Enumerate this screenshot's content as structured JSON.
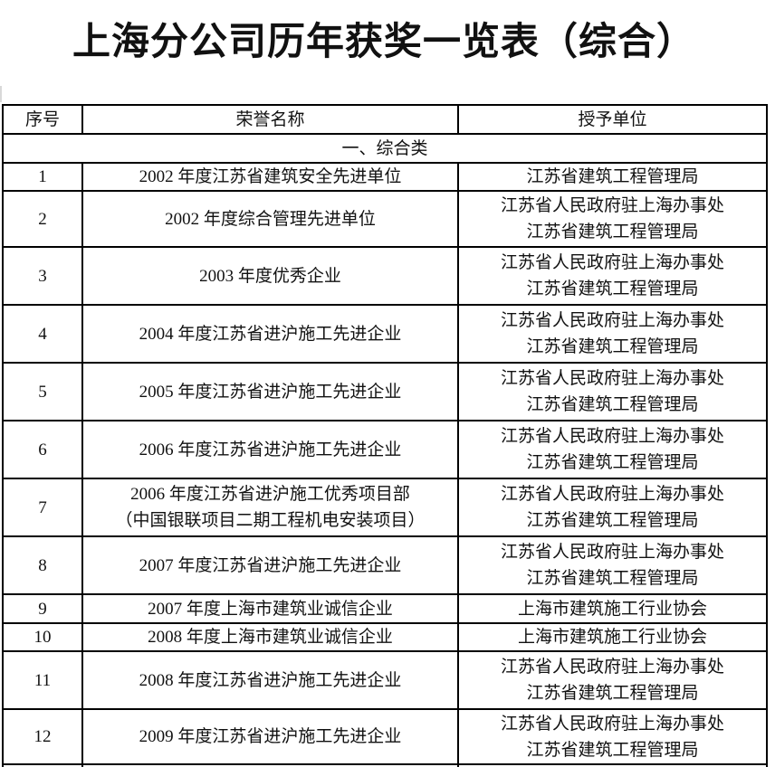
{
  "title": "上海分公司历年获奖一览表（综合）",
  "table": {
    "headers": [
      "序号",
      "荣誉名称",
      "授予单位"
    ],
    "section_header": "一、综合类",
    "rows": [
      {
        "no": "1",
        "honor": [
          "2002 年度江苏省建筑安全先进单位"
        ],
        "unit": [
          "江苏省建筑工程管理局"
        ]
      },
      {
        "no": "2",
        "honor": [
          "2002 年度综合管理先进单位"
        ],
        "unit": [
          "江苏省人民政府驻上海办事处",
          "江苏省建筑工程管理局"
        ]
      },
      {
        "no": "3",
        "honor": [
          "2003 年度优秀企业"
        ],
        "unit": [
          "江苏省人民政府驻上海办事处",
          "江苏省建筑工程管理局"
        ]
      },
      {
        "no": "4",
        "honor": [
          "2004 年度江苏省进沪施工先进企业"
        ],
        "unit": [
          "江苏省人民政府驻上海办事处",
          "江苏省建筑工程管理局"
        ]
      },
      {
        "no": "5",
        "honor": [
          "2005 年度江苏省进沪施工先进企业"
        ],
        "unit": [
          "江苏省人民政府驻上海办事处",
          "江苏省建筑工程管理局"
        ]
      },
      {
        "no": "6",
        "honor": [
          "2006 年度江苏省进沪施工先进企业"
        ],
        "unit": [
          "江苏省人民政府驻上海办事处",
          "江苏省建筑工程管理局"
        ]
      },
      {
        "no": "7",
        "honor": [
          "2006 年度江苏省进沪施工优秀项目部",
          "（中国银联项目二期工程机电安装项目）"
        ],
        "unit": [
          "江苏省人民政府驻上海办事处",
          "江苏省建筑工程管理局"
        ]
      },
      {
        "no": "8",
        "honor": [
          "2007 年度江苏省进沪施工先进企业"
        ],
        "unit": [
          "江苏省人民政府驻上海办事处",
          "江苏省建筑工程管理局"
        ]
      },
      {
        "no": "9",
        "honor": [
          "2007 年度上海市建筑业诚信企业"
        ],
        "unit": [
          "上海市建筑施工行业协会"
        ]
      },
      {
        "no": "10",
        "honor": [
          "2008 年度上海市建筑业诚信企业"
        ],
        "unit": [
          "上海市建筑施工行业协会"
        ]
      },
      {
        "no": "11",
        "honor": [
          "2008 年度江苏省进沪施工先进企业"
        ],
        "unit": [
          "江苏省人民政府驻上海办事处",
          "江苏省建筑工程管理局"
        ]
      },
      {
        "no": "12",
        "honor": [
          "2009 年度江苏省进沪施工先进企业"
        ],
        "unit": [
          "江苏省人民政府驻上海办事处",
          "江苏省建筑工程管理局"
        ]
      }
    ]
  },
  "colors": {
    "text": "#111111",
    "border": "#000000",
    "background": "#ffffff"
  }
}
